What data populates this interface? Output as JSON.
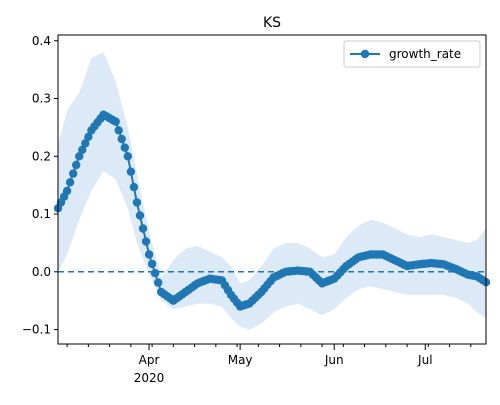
{
  "chart_data": {
    "type": "line",
    "title": "KS",
    "xlabel": "",
    "ylabel": "",
    "x_axis": {
      "type": "date",
      "range": [
        "2020-03-02",
        "2020-07-21"
      ],
      "major_ticks": [
        {
          "date": "2020-04-01",
          "label": "Apr",
          "sublabel": "2020"
        },
        {
          "date": "2020-05-01",
          "label": "May",
          "sublabel": ""
        },
        {
          "date": "2020-06-01",
          "label": "Jun",
          "sublabel": ""
        },
        {
          "date": "2020-07-01",
          "label": "Jul",
          "sublabel": ""
        }
      ],
      "minor_tick_interval_days": 7
    },
    "y_axis": {
      "range": [
        -0.125,
        0.41
      ],
      "ticks": [
        -0.1,
        0.0,
        0.1,
        0.2,
        0.3,
        0.4
      ],
      "tick_labels": [
        "−0.1",
        "0.0",
        "0.1",
        "0.2",
        "0.3",
        "0.4"
      ]
    },
    "legend": {
      "placement": "top-right",
      "entries": [
        "growth_rate"
      ]
    },
    "reference_line": {
      "y": 0.0,
      "style": "dashed"
    },
    "grid": false,
    "colors": {
      "line": "#1f77b4",
      "band": "#dce9f6"
    },
    "series": [
      {
        "name": "growth_rate",
        "x": [
          "2020-03-02",
          "2020-03-05",
          "2020-03-09",
          "2020-03-13",
          "2020-03-17",
          "2020-03-21",
          "2020-03-25",
          "2020-03-28",
          "2020-04-01",
          "2020-04-05",
          "2020-04-09",
          "2020-04-13",
          "2020-04-17",
          "2020-04-21",
          "2020-04-25",
          "2020-04-28",
          "2020-05-01",
          "2020-05-04",
          "2020-05-08",
          "2020-05-12",
          "2020-05-16",
          "2020-05-20",
          "2020-05-24",
          "2020-05-28",
          "2020-06-01",
          "2020-06-05",
          "2020-06-09",
          "2020-06-13",
          "2020-06-17",
          "2020-06-21",
          "2020-06-25",
          "2020-06-29",
          "2020-07-03",
          "2020-07-07",
          "2020-07-11",
          "2020-07-15",
          "2020-07-18",
          "2020-07-21"
        ],
        "y": [
          0.11,
          0.14,
          0.2,
          0.245,
          0.272,
          0.26,
          0.2,
          0.12,
          0.03,
          -0.035,
          -0.05,
          -0.035,
          -0.02,
          -0.012,
          -0.015,
          -0.04,
          -0.06,
          -0.055,
          -0.035,
          -0.01,
          0.0,
          0.002,
          0.0,
          -0.02,
          -0.012,
          0.01,
          0.025,
          0.03,
          0.03,
          0.02,
          0.01,
          0.013,
          0.015,
          0.013,
          0.005,
          -0.005,
          -0.008,
          -0.018
        ],
        "band_lower": [
          0.0,
          0.03,
          0.09,
          0.14,
          0.175,
          0.16,
          0.11,
          0.05,
          -0.005,
          -0.05,
          -0.065,
          -0.06,
          -0.055,
          -0.055,
          -0.06,
          -0.08,
          -0.095,
          -0.1,
          -0.09,
          -0.07,
          -0.06,
          -0.055,
          -0.065,
          -0.075,
          -0.065,
          -0.045,
          -0.03,
          -0.025,
          -0.03,
          -0.035,
          -0.04,
          -0.04,
          -0.04,
          -0.04,
          -0.045,
          -0.055,
          -0.07,
          -0.08
        ],
        "band_upper": [
          0.22,
          0.28,
          0.31,
          0.37,
          0.38,
          0.33,
          0.25,
          0.17,
          0.07,
          -0.01,
          0.02,
          0.04,
          0.045,
          0.035,
          0.025,
          0.01,
          -0.02,
          -0.015,
          0.01,
          0.04,
          0.05,
          0.05,
          0.04,
          0.025,
          0.03,
          0.06,
          0.08,
          0.09,
          0.085,
          0.075,
          0.065,
          0.06,
          0.065,
          0.06,
          0.055,
          0.05,
          0.055,
          0.075
        ]
      }
    ]
  }
}
